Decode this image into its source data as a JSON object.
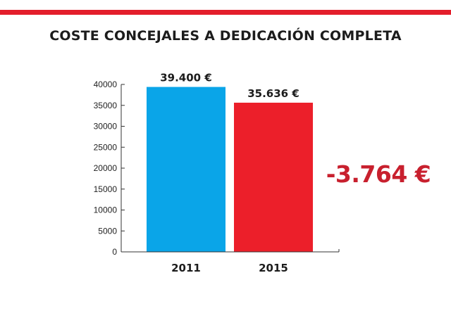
{
  "colors": {
    "stripe": "#e31e2b",
    "bar_2011": "#0aa5e8",
    "bar_2015": "#ec1f2a",
    "annotation": "#c8202e",
    "axis": "#333333"
  },
  "chart_data": {
    "type": "bar",
    "title": "COSTE CONCEJALES A DEDICACIÓN COMPLETA",
    "categories": [
      "2011",
      "2015"
    ],
    "values": [
      39400,
      35636
    ],
    "data_labels": [
      "39.400 €",
      "35.636 €"
    ],
    "ylim": [
      0,
      40000
    ],
    "yticks": [
      0,
      5000,
      10000,
      15000,
      20000,
      25000,
      30000,
      35000,
      40000
    ],
    "xlabel": "",
    "ylabel": "",
    "grid": false,
    "legend": "none",
    "annotation": "-3.764 €"
  }
}
